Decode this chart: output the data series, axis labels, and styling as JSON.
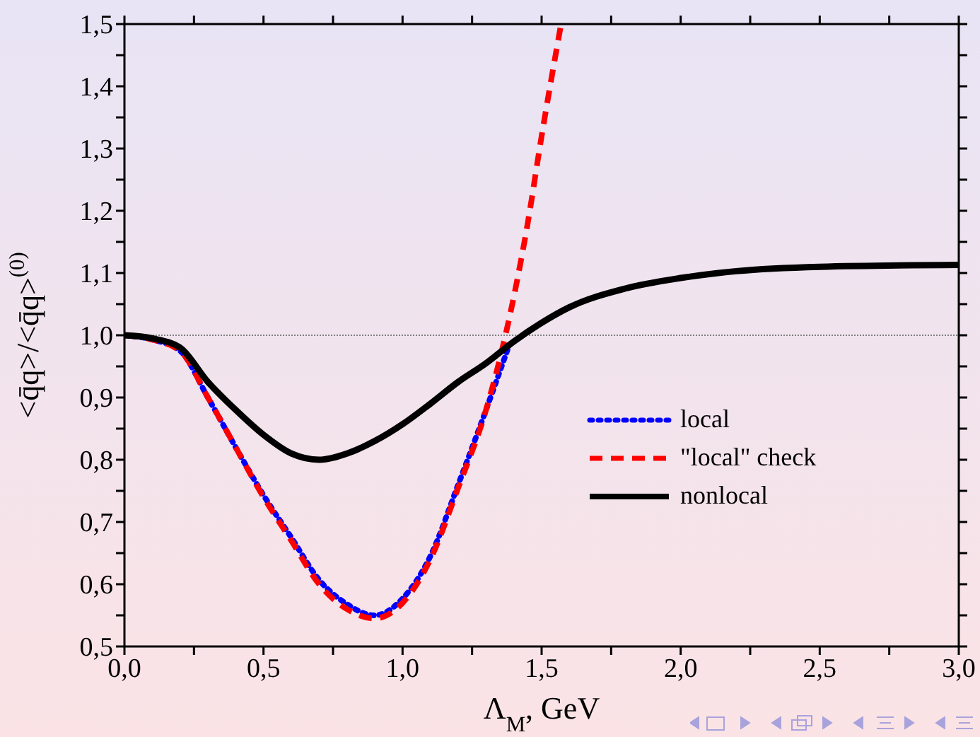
{
  "chart_data": {
    "type": "line",
    "xlabel": "Λ$_{M}$, GeV",
    "ylabel": "<q̄q>/<q̄q>$^{(0)}$",
    "xlim": [
      0,
      3
    ],
    "ylim": [
      0.5,
      1.5
    ],
    "xticks": [
      {
        "value": 0,
        "label": "0,0"
      },
      {
        "value": 0.25,
        "label": null
      },
      {
        "value": 0.5,
        "label": "0,5"
      },
      {
        "value": 0.75,
        "label": null
      },
      {
        "value": 1,
        "label": "1,0"
      },
      {
        "value": 1.25,
        "label": null
      },
      {
        "value": 1.5,
        "label": "1,5"
      },
      {
        "value": 1.75,
        "label": null
      },
      {
        "value": 2,
        "label": "2,0"
      },
      {
        "value": 2.25,
        "label": null
      },
      {
        "value": 2.5,
        "label": "2,5"
      },
      {
        "value": 2.75,
        "label": null
      },
      {
        "value": 3,
        "label": "3,0"
      }
    ],
    "yticks": [
      {
        "value": 0.5,
        "label": "0,5"
      },
      {
        "value": 0.55,
        "label": null
      },
      {
        "value": 0.6,
        "label": "0,6"
      },
      {
        "value": 0.65,
        "label": null
      },
      {
        "value": 0.7,
        "label": "0,7"
      },
      {
        "value": 0.75,
        "label": null
      },
      {
        "value": 0.8,
        "label": "0,8"
      },
      {
        "value": 0.85,
        "label": null
      },
      {
        "value": 0.9,
        "label": "0,9"
      },
      {
        "value": 0.95,
        "label": null
      },
      {
        "value": 1,
        "label": "1,0"
      },
      {
        "value": 1.05,
        "label": null
      },
      {
        "value": 1.1,
        "label": "1,1"
      },
      {
        "value": 1.15,
        "label": null
      },
      {
        "value": 1.2,
        "label": "1,2"
      },
      {
        "value": 1.25,
        "label": null
      },
      {
        "value": 1.3,
        "label": "1,3"
      },
      {
        "value": 1.35,
        "label": null
      },
      {
        "value": 1.4,
        "label": "1,4"
      },
      {
        "value": 1.45,
        "label": null
      },
      {
        "value": 1.5,
        "label": "1,5"
      }
    ],
    "legend": "right",
    "marker": "none",
    "ref_lines": [
      {
        "axis": "y",
        "value": 1,
        "color": "#808080",
        "line_style": "dotted"
      }
    ],
    "series": [
      {
        "name": "local",
        "color": "#0000ff",
        "line_style": "dotted",
        "x": [
          0,
          0.1,
          0.2,
          0.3,
          0.4,
          0.5,
          0.6,
          0.7,
          0.8,
          0.9,
          1.0,
          1.1,
          1.2,
          1.3,
          1.38
        ],
        "values": [
          1,
          0.993,
          0.975,
          0.9,
          0.82,
          0.743,
          0.675,
          0.607,
          0.568,
          0.55,
          0.577,
          0.645,
          0.76,
          0.88,
          0.98
        ]
      },
      {
        "name": "\"local\" check",
        "color": "#ff0000",
        "line_style": "dashed",
        "x": [
          0,
          0.1,
          0.2,
          0.3,
          0.4,
          0.5,
          0.6,
          0.7,
          0.8,
          0.9,
          1.0,
          1.1,
          1.2,
          1.3,
          1.37,
          1.45,
          1.5,
          1.57
        ],
        "values": [
          1,
          0.993,
          0.975,
          0.9,
          0.82,
          0.74,
          0.67,
          0.6,
          0.56,
          0.545,
          0.57,
          0.64,
          0.755,
          0.88,
          1.0,
          1.18,
          1.32,
          1.5
        ]
      },
      {
        "name": "nonlocal",
        "color": "#000000",
        "line_style": "solid",
        "x": [
          0,
          0.1,
          0.2,
          0.3,
          0.4,
          0.5,
          0.6,
          0.7,
          0.8,
          0.9,
          1.0,
          1.1,
          1.2,
          1.3,
          1.4,
          1.5,
          1.6,
          1.8,
          2.0,
          2.2,
          2.5,
          3.0
        ],
        "values": [
          1,
          0.995,
          0.98,
          0.925,
          0.88,
          0.84,
          0.81,
          0.8,
          0.81,
          0.83,
          0.857,
          0.89,
          0.925,
          0.955,
          0.99,
          1.02,
          1.045,
          1.075,
          1.092,
          1.103,
          1.11,
          1.113
        ]
      }
    ]
  }
}
